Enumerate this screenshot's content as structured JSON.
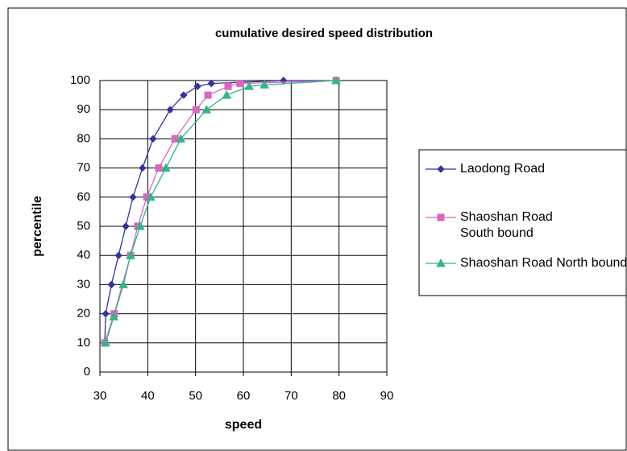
{
  "chart_data": {
    "type": "line",
    "title": "cumulative desired speed distribution",
    "x_label": "speed",
    "y_label": "percentile",
    "xlim": [
      30,
      90
    ],
    "xticks": [
      30,
      40,
      50,
      60,
      70,
      80,
      90
    ],
    "ylim": [
      0,
      100
    ],
    "yticks": [
      0,
      10,
      20,
      30,
      40,
      50,
      60,
      70,
      80,
      90,
      100
    ],
    "grid": true,
    "legend": "right",
    "series": [
      {
        "name": "Laodong Road",
        "color": "#333399",
        "marker": "diamond",
        "x": [
          31,
          31.2,
          32.4,
          33.9,
          35.4,
          36.9,
          38.9,
          41.1,
          44.7,
          47.5,
          50.4,
          53.3,
          68.4,
          79.4
        ],
        "values": [
          10,
          20,
          30,
          40,
          50,
          60,
          70,
          80,
          90,
          95,
          98,
          99,
          100,
          100
        ]
      },
      {
        "name": "Shaoshan Road South bound",
        "color": "#d966c0",
        "marker": "square",
        "x": [
          31,
          33,
          36.4,
          37.9,
          39.8,
          42.3,
          45.7,
          50.1,
          52.6,
          56.8,
          59.3,
          79.4
        ],
        "values": [
          10,
          20,
          40,
          50,
          60,
          70,
          80,
          90,
          95,
          98,
          99,
          100
        ]
      },
      {
        "name": "Shaoshan Road North bound",
        "color": "#33b58a",
        "marker": "triangle",
        "x": [
          31.2,
          32.9,
          34.9,
          36.4,
          38.4,
          40.6,
          43.8,
          46.9,
          52.3,
          56.5,
          61.2,
          64.4,
          79.4
        ],
        "values": [
          10,
          19,
          30,
          40,
          50,
          60,
          70,
          80,
          90,
          95,
          98,
          98.5,
          100
        ]
      }
    ]
  }
}
